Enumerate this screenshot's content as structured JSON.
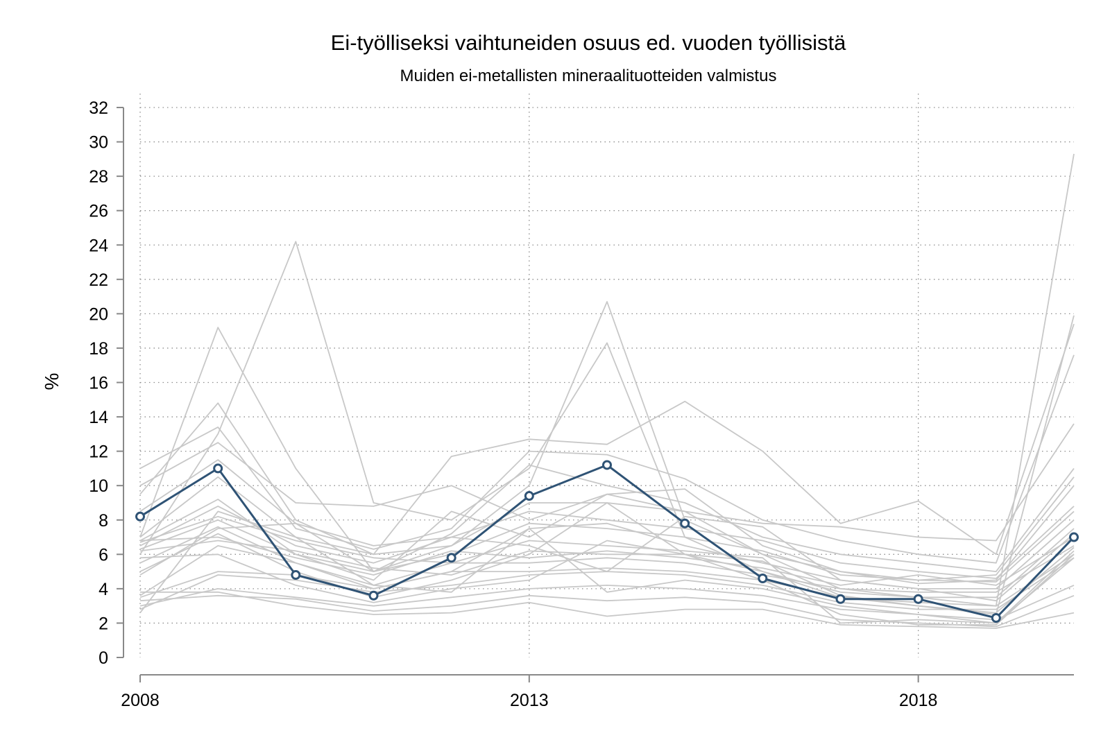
{
  "chart_data": {
    "type": "line",
    "title": "Ei-työlliseksi vaihtuneiden osuus ed. vuoden työllisistä",
    "subtitle": "Muiden ei-metallisten mineraalituotteiden valmistus",
    "xlabel": "",
    "ylabel": "%",
    "xlim": [
      2008,
      2020
    ],
    "ylim": [
      0,
      32
    ],
    "x_ticks": [
      2008,
      2013,
      2018
    ],
    "y_ticks": [
      0,
      2,
      4,
      6,
      8,
      10,
      12,
      14,
      16,
      18,
      20,
      22,
      24,
      26,
      28,
      30,
      32
    ],
    "grid": true,
    "legend": "none",
    "x": [
      2008,
      2009,
      2010,
      2011,
      2012,
      2013,
      2014,
      2015,
      2016,
      2017,
      2018,
      2019,
      2020
    ],
    "highlight_color": "#2f5375",
    "background_color": "#c8c8c8",
    "series": [
      {
        "highlight": true,
        "values": [
          8.2,
          11.0,
          4.8,
          3.6,
          5.8,
          9.4,
          11.2,
          7.8,
          4.6,
          3.4,
          3.4,
          2.3,
          7.0
        ]
      },
      {
        "values": [
          7.0,
          19.2,
          11.0,
          5.0,
          6.5,
          10.0,
          20.7,
          8.0,
          6.0,
          4.0,
          3.5,
          3.0,
          29.3
        ]
      },
      {
        "values": [
          6.0,
          13.0,
          24.2,
          9.0,
          8.0,
          11.0,
          18.3,
          7.0,
          5.0,
          3.5,
          3.0,
          2.5,
          19.9
        ]
      },
      {
        "values": [
          9.5,
          14.8,
          8.0,
          6.0,
          11.7,
          12.7,
          12.4,
          14.9,
          12.0,
          7.8,
          9.1,
          6.0,
          19.4
        ]
      },
      {
        "values": [
          11.0,
          13.4,
          7.5,
          6.3,
          7.5,
          12.0,
          11.8,
          10.4,
          8.0,
          6.8,
          6.0,
          5.5,
          17.6
        ]
      },
      {
        "values": [
          10.0,
          12.5,
          9.0,
          8.8,
          10.0,
          8.0,
          9.5,
          8.5,
          7.8,
          7.6,
          7.0,
          6.8,
          13.6
        ]
      },
      {
        "values": [
          8.5,
          11.5,
          7.8,
          5.0,
          7.2,
          11.2,
          10.0,
          9.0,
          7.0,
          6.0,
          5.5,
          5.0,
          11.0
        ]
      },
      {
        "values": [
          7.0,
          10.5,
          7.0,
          6.0,
          6.5,
          9.0,
          9.0,
          8.5,
          6.0,
          5.0,
          4.5,
          4.8,
          10.5
        ]
      },
      {
        "values": [
          6.8,
          9.2,
          6.0,
          4.5,
          8.5,
          7.0,
          9.5,
          9.8,
          6.5,
          5.0,
          4.3,
          4.5,
          10.0
        ]
      },
      {
        "values": [
          6.5,
          8.8,
          6.5,
          5.5,
          7.0,
          8.5,
          8.0,
          7.5,
          6.8,
          5.5,
          5.0,
          4.6,
          8.8
        ]
      },
      {
        "values": [
          6.3,
          8.0,
          6.0,
          5.0,
          6.0,
          7.8,
          7.5,
          7.0,
          6.2,
          4.8,
          4.5,
          4.4,
          8.5
        ]
      },
      {
        "values": [
          5.5,
          7.6,
          5.5,
          4.0,
          5.0,
          7.5,
          7.8,
          6.5,
          5.5,
          4.5,
          4.0,
          4.0,
          8.0
        ]
      },
      {
        "values": [
          5.0,
          7.2,
          5.0,
          3.5,
          4.5,
          6.0,
          9.0,
          6.0,
          5.0,
          3.8,
          3.5,
          3.5,
          7.5
        ]
      },
      {
        "values": [
          4.8,
          7.5,
          7.8,
          6.5,
          7.0,
          6.5,
          5.0,
          8.2,
          7.6,
          4.5,
          4.0,
          3.3,
          7.2
        ]
      },
      {
        "values": [
          6.8,
          7.0,
          5.8,
          4.8,
          6.2,
          5.8,
          6.2,
          5.8,
          5.2,
          4.2,
          4.8,
          4.2,
          7.0
        ]
      },
      {
        "values": [
          3.6,
          6.5,
          5.5,
          4.2,
          5.5,
          5.5,
          5.8,
          5.5,
          4.8,
          4.0,
          3.8,
          3.8,
          6.5
        ]
      },
      {
        "values": [
          3.5,
          5.0,
          4.8,
          4.0,
          5.0,
          5.0,
          5.2,
          5.0,
          4.5,
          3.5,
          3.2,
          3.0,
          6.0
        ]
      },
      {
        "values": [
          2.8,
          4.8,
          4.5,
          3.8,
          4.2,
          4.8,
          5.0,
          4.8,
          4.2,
          3.2,
          2.8,
          2.8,
          5.8
        ]
      },
      {
        "values": [
          2.6,
          8.5,
          7.0,
          4.2,
          3.8,
          7.5,
          3.8,
          4.5,
          4.0,
          3.0,
          2.5,
          2.0,
          6.2
        ]
      },
      {
        "values": [
          3.0,
          4.0,
          3.5,
          3.0,
          3.5,
          4.0,
          4.2,
          4.0,
          3.6,
          2.8,
          2.5,
          2.2,
          4.2
        ]
      },
      {
        "values": [
          3.3,
          3.6,
          3.4,
          2.7,
          3.0,
          3.6,
          3.3,
          3.5,
          3.2,
          2.2,
          2.0,
          1.8,
          3.6
        ]
      },
      {
        "values": [
          3.8,
          3.8,
          3.0,
          2.5,
          2.6,
          3.2,
          2.4,
          2.8,
          2.8,
          1.9,
          1.8,
          1.7,
          2.6
        ]
      },
      {
        "values": [
          6.7,
          8.2,
          6.8,
          5.8,
          5.5,
          6.8,
          6.5,
          6.2,
          5.8,
          2.0,
          2.2,
          2.0,
          5.8
        ]
      },
      {
        "values": [
          5.8,
          6.0,
          4.2,
          3.2,
          4.0,
          4.5,
          6.8,
          6.0,
          4.5,
          2.5,
          1.9,
          1.9,
          6.0
        ]
      },
      {
        "values": [
          6.2,
          6.8,
          6.2,
          5.2,
          4.8,
          6.2,
          6.0,
          6.0,
          5.6,
          3.6,
          3.0,
          2.6,
          6.4
        ]
      }
    ]
  }
}
